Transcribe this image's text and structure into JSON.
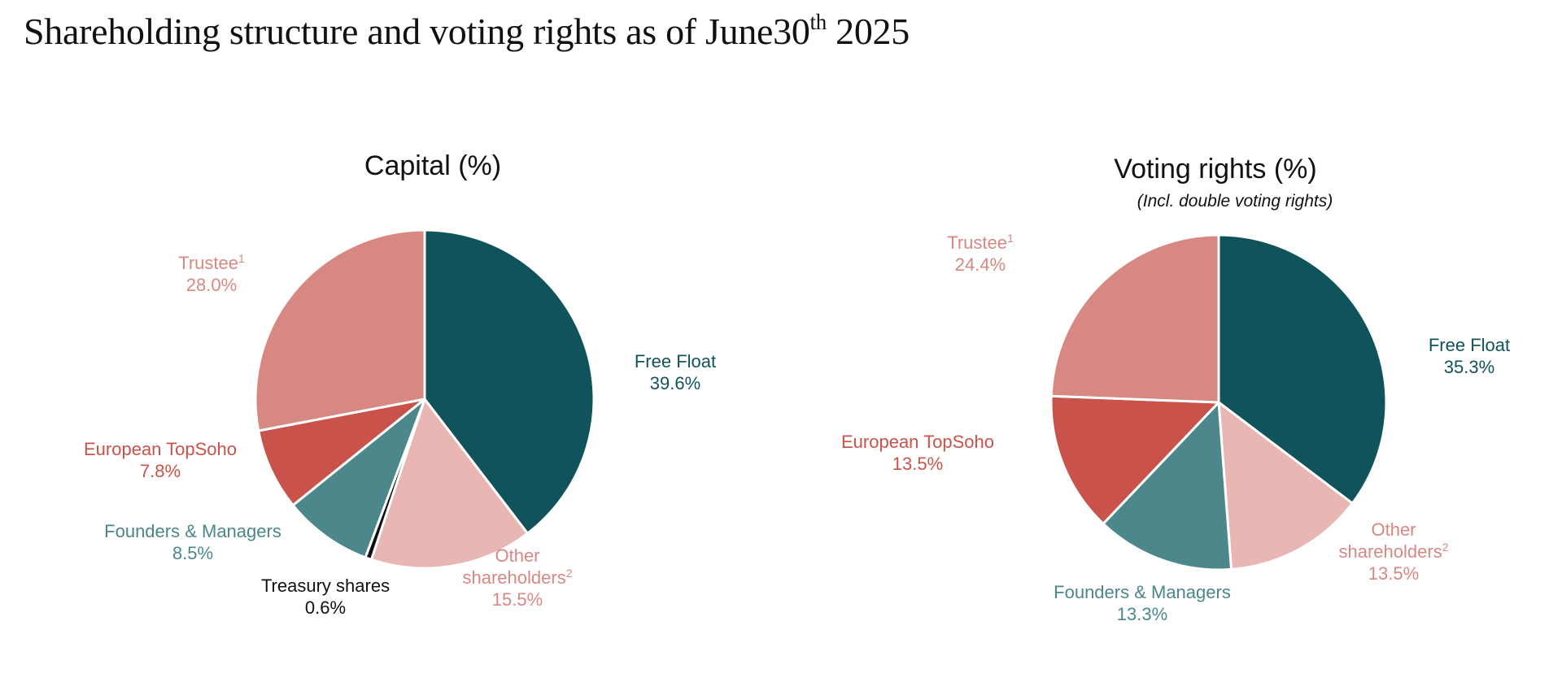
{
  "title": {
    "main": "Shareholding structure and voting rights as of June30",
    "sup": "th",
    "year": " 2025"
  },
  "colors": {
    "free_float": "#11535a",
    "other": "#e8b6b3",
    "treasury": "#111111",
    "founders": "#4b878b",
    "european": "#c9534a",
    "trustee": "#d88882"
  },
  "chart_data": [
    {
      "type": "pie",
      "title": "Capital (%)",
      "subtitle": "",
      "unit": "%",
      "slices": [
        {
          "name": "Free Float",
          "sup": "",
          "value": 39.6,
          "value_label": "39.6%",
          "color": "#11535a",
          "label_color": "#11535a"
        },
        {
          "name": "Other shareholders",
          "sup": "2",
          "value": 15.5,
          "value_label": "15.5%",
          "color": "#e8b6b3",
          "label_color": "#d88882"
        },
        {
          "name": "Treasury shares",
          "sup": "",
          "value": 0.6,
          "value_label": "0.6%",
          "color": "#111111",
          "label_color": "#111111"
        },
        {
          "name": "Founders & Managers",
          "sup": "",
          "value": 8.5,
          "value_label": "8.5%",
          "color": "#4b878b",
          "label_color": "#4b878b"
        },
        {
          "name": "European TopSoho",
          "sup": "",
          "value": 7.8,
          "value_label": "7.8%",
          "color": "#c9534a",
          "label_color": "#c9534a"
        },
        {
          "name": "Trustee",
          "sup": "1",
          "value": 28.0,
          "value_label": "28.0%",
          "color": "#d88882",
          "label_color": "#d88882"
        }
      ]
    },
    {
      "type": "pie",
      "title": "Voting rights (%)",
      "subtitle": "(Incl. double voting rights)",
      "unit": "%",
      "slices": [
        {
          "name": "Free Float",
          "sup": "",
          "value": 35.3,
          "value_label": "35.3%",
          "color": "#11535a",
          "label_color": "#11535a"
        },
        {
          "name": "Other shareholders",
          "sup": "2",
          "value": 13.5,
          "value_label": "13.5%",
          "color": "#e8b6b3",
          "label_color": "#d88882"
        },
        {
          "name": "Founders & Managers",
          "sup": "",
          "value": 13.3,
          "value_label": "13.3%",
          "color": "#4b878b",
          "label_color": "#4b878b"
        },
        {
          "name": "European TopSoho",
          "sup": "",
          "value": 13.5,
          "value_label": "13.5%",
          "color": "#c9534a",
          "label_color": "#c9534a"
        },
        {
          "name": "Trustee",
          "sup": "1",
          "value": 24.4,
          "value_label": "24.4%",
          "color": "#d88882",
          "label_color": "#d88882"
        }
      ]
    }
  ]
}
